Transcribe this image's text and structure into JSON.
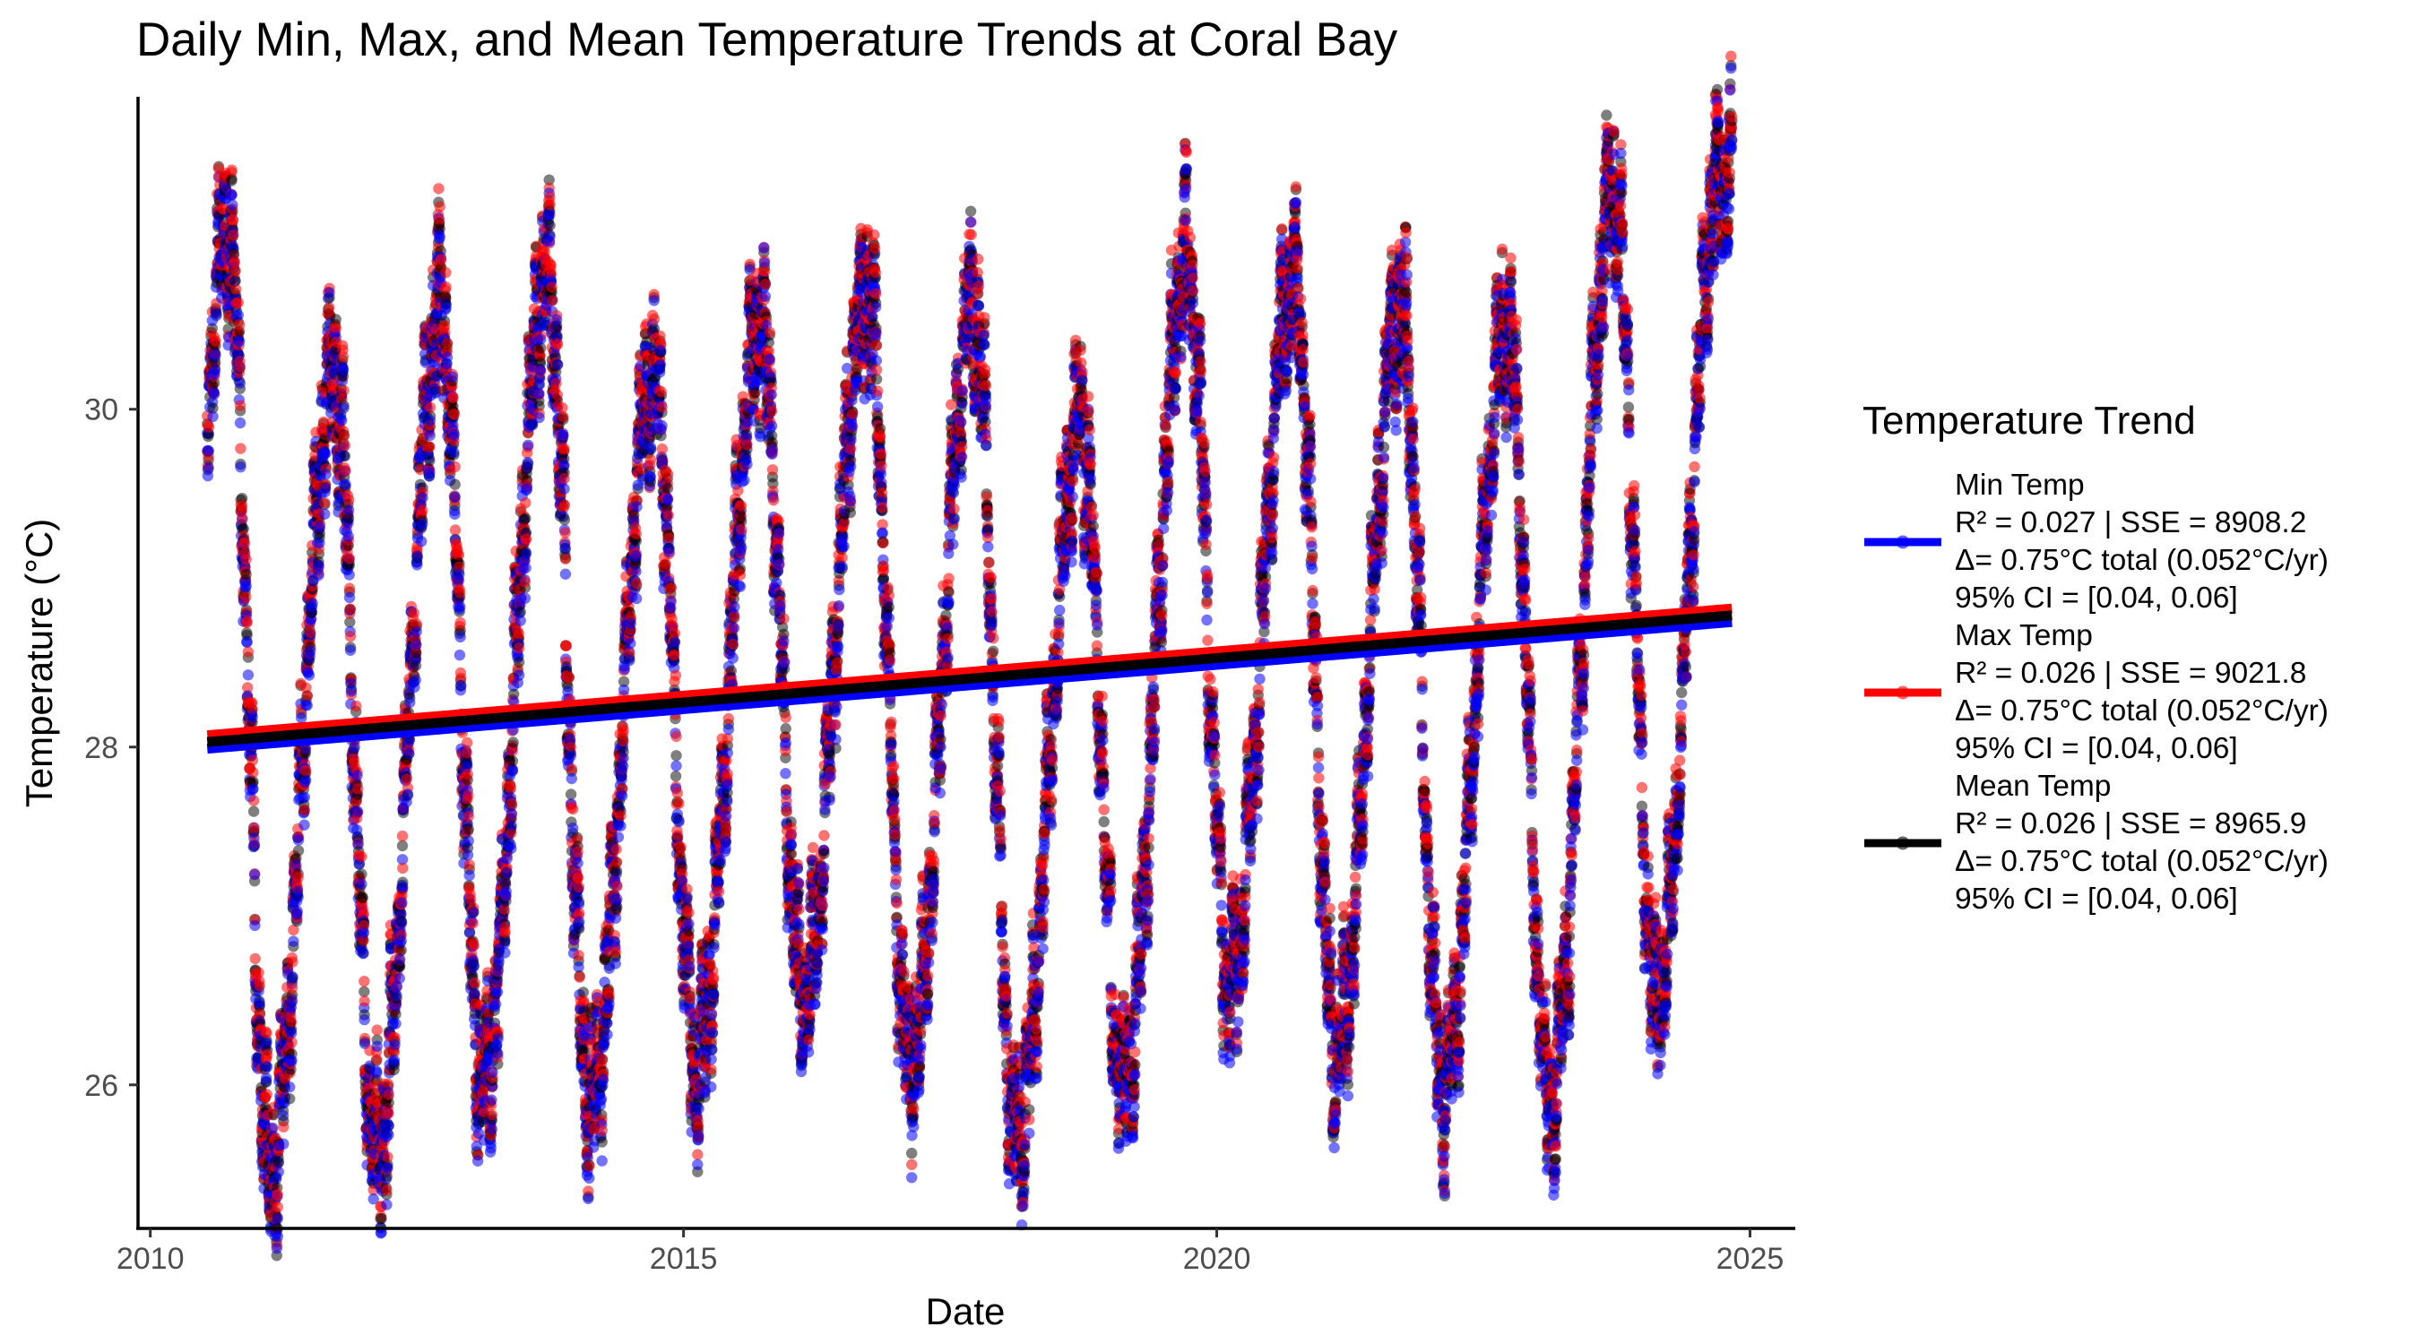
{
  "chart_data": {
    "type": "scatter",
    "title": "Daily Min, Max, and Mean Temperature Trends at Coral Bay",
    "xlabel": "Date",
    "ylabel": "Temperature (°C)",
    "xlim": [
      "2009-11-20",
      "2025-06-05"
    ],
    "ylim": [
      25.15,
      31.85
    ],
    "x_ticks": [
      "2010",
      "2015",
      "2020",
      "2025"
    ],
    "y_ticks": [
      26,
      28,
      30
    ],
    "grid": false,
    "legend": {
      "title": "Temperature Trend",
      "placement": "right"
    },
    "date_range": [
      "2010-07-15",
      "2024-10-31"
    ],
    "seasonal_cycles": [
      {
        "year": 2010,
        "summer_peak": 31.1,
        "winter_trough": 25.3
      },
      {
        "year": 2011,
        "summer_peak": 30.2,
        "winter_trough": 25.5
      },
      {
        "year": 2012,
        "summer_peak": 30.6,
        "winter_trough": 25.6
      },
      {
        "year": 2013,
        "summer_peak": 30.8,
        "winter_trough": 26.0
      },
      {
        "year": 2014,
        "summer_peak": 30.2,
        "winter_trough": 25.9
      },
      {
        "year": 2015,
        "summer_peak": 30.5,
        "winter_trough": 26.1
      },
      {
        "year": 2016,
        "summer_peak": 30.7,
        "winter_trough": 26.5
      },
      {
        "year": 2017,
        "summer_peak": 30.6,
        "winter_trough": 26.1
      },
      {
        "year": 2018,
        "summer_peak": 29.9,
        "winter_trough": 25.7
      },
      {
        "year": 2019,
        "summer_peak": 30.9,
        "winter_trough": 26.0
      },
      {
        "year": 2020,
        "summer_peak": 30.8,
        "winter_trough": 26.6
      },
      {
        "year": 2021,
        "summer_peak": 30.6,
        "winter_trough": 26.2
      },
      {
        "year": 2022,
        "summer_peak": 30.5,
        "winter_trough": 26.0
      },
      {
        "year": 2023,
        "summer_peak": 31.3,
        "winter_trough": 25.9
      },
      {
        "year": 2024,
        "summer_peak": 31.4,
        "winter_trough": 26.5
      }
    ],
    "series": [
      {
        "name": "Min Temp",
        "color": "#0000ff",
        "stats": [
          "R² = 0.027 | SSE = 8908.2",
          "Δ= 0.75°C total (0.052°C/yr)",
          "95% CI = [0.04, 0.06]"
        ],
        "trend_line": {
          "x": [
            "2010-07-15",
            "2024-10-31"
          ],
          "y": [
            27.99,
            28.74
          ]
        }
      },
      {
        "name": "Max Temp",
        "color": "#ff0000",
        "stats": [
          "R² = 0.026 | SSE = 9021.8",
          "Δ= 0.75°C total (0.052°C/yr)",
          "95% CI = [0.04, 0.06]"
        ],
        "trend_line": {
          "x": [
            "2010-07-15",
            "2024-10-31"
          ],
          "y": [
            28.07,
            28.82
          ]
        }
      },
      {
        "name": "Mean Temp",
        "color": "#000000",
        "stats": [
          "R² = 0.026 | SSE = 8965.9",
          "Δ= 0.75°C total (0.052°C/yr)",
          "95% CI = [0.04, 0.06]"
        ],
        "trend_line": {
          "x": [
            "2010-07-15",
            "2024-10-31"
          ],
          "y": [
            28.03,
            28.78
          ]
        }
      }
    ]
  }
}
